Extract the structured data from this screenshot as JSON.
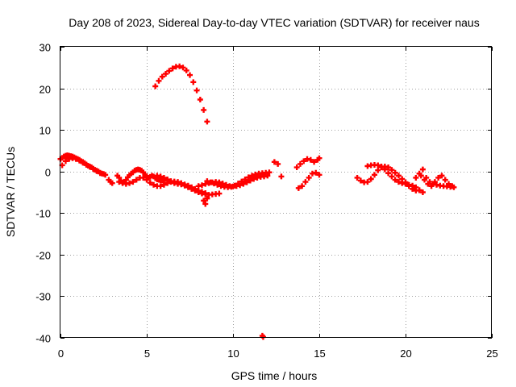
{
  "chart_data": {
    "type": "scatter",
    "title": "Day 208 of 2023, Sidereal Day-to-day VTEC variation (SDTVAR) for receiver naus",
    "xlabel": "GPS time / hours",
    "ylabel": "SDTVAR / TECUs",
    "xlim": [
      0,
      25
    ],
    "ylim": [
      -40,
      30
    ],
    "xticks": [
      0,
      5,
      10,
      15,
      20,
      25
    ],
    "yticks": [
      30,
      20,
      10,
      0,
      -10,
      -20,
      -30,
      -40
    ],
    "grid": true,
    "marker": "plus",
    "color": "#ff0000",
    "series": [
      {
        "name": "SDTVAR",
        "x": [
          0.0,
          0.1,
          0.2,
          0.3,
          0.4,
          0.5,
          0.6,
          0.7,
          0.8,
          0.9,
          1.0,
          1.1,
          1.2,
          1.3,
          1.4,
          1.5,
          1.6,
          1.7,
          1.8,
          1.9,
          2.0,
          2.1,
          2.2,
          2.3,
          2.4,
          2.5,
          2.6,
          0.1,
          0.3,
          0.5,
          0.7,
          0.9,
          1.1,
          1.3,
          1.5,
          1.7,
          1.9,
          2.1,
          2.3,
          2.8,
          2.9,
          3.0,
          3.3,
          3.4,
          3.5,
          3.6,
          3.7,
          3.8,
          3.9,
          4.0,
          4.1,
          4.2,
          4.3,
          4.4,
          4.5,
          4.6,
          4.7,
          4.8,
          4.9,
          5.0,
          5.1,
          5.2,
          5.3,
          5.4,
          5.5,
          5.6,
          5.7,
          5.8,
          5.9,
          6.0,
          3.4,
          3.6,
          3.8,
          4.0,
          4.2,
          4.4,
          4.6,
          4.8,
          5.0,
          5.2,
          5.4,
          5.6,
          5.8,
          6.0,
          6.2,
          6.4,
          6.6,
          6.8,
          7.0,
          7.2,
          7.4,
          7.6,
          7.8,
          8.0,
          8.2,
          8.4,
          5.5,
          5.7,
          5.9,
          6.1,
          6.3,
          6.5,
          6.7,
          6.9,
          7.1,
          7.3,
          7.5,
          7.7,
          7.9,
          8.1,
          8.3,
          8.5,
          8.0,
          8.2,
          8.4,
          8.6,
          8.8,
          9.0,
          9.2,
          9.4,
          9.6,
          9.8,
          10.0,
          10.2,
          10.4,
          10.6,
          10.8,
          11.0,
          11.2,
          11.4,
          11.6,
          11.8,
          12.0,
          8.5,
          8.7,
          8.9,
          9.1,
          9.3,
          9.5,
          9.7,
          9.9,
          10.1,
          10.3,
          10.5,
          10.7,
          10.9,
          11.1,
          11.3,
          11.5,
          11.7,
          11.9,
          12.1,
          8.3,
          8.4,
          8.5,
          5.6,
          5.8,
          6.0,
          6.2,
          6.4,
          6.6,
          6.8,
          7.0,
          7.2,
          7.4,
          7.6,
          7.8,
          8.0,
          8.2,
          8.4,
          8.6,
          8.8,
          9.0,
          9.2,
          11.7,
          11.75,
          12.4,
          12.6,
          12.8,
          13.7,
          13.9,
          14.1,
          14.3,
          14.5,
          14.7,
          14.9,
          15.0,
          13.8,
          14.0,
          14.2,
          14.4,
          14.6,
          14.8,
          15.0,
          17.2,
          17.4,
          17.6,
          17.8,
          18.0,
          18.2,
          18.4,
          18.6,
          18.8,
          19.0,
          19.2,
          19.4,
          19.6,
          19.8,
          20.0,
          20.2,
          20.4,
          20.6,
          20.8,
          17.8,
          18.0,
          18.2,
          18.4,
          18.6,
          18.8,
          19.0,
          19.2,
          19.4,
          19.6,
          19.8,
          20.0,
          20.2,
          20.4,
          20.6,
          20.8,
          21.0,
          20.6,
          20.8,
          21.0,
          21.2,
          21.4,
          21.6,
          21.8,
          22.0,
          22.2,
          22.4,
          22.6,
          22.8,
          20.9,
          21.1,
          21.3,
          21.5,
          21.7,
          21.9,
          22.1,
          22.3,
          22.5,
          22.7
        ],
        "y": [
          3.0,
          3.3,
          3.6,
          3.8,
          3.9,
          3.8,
          3.7,
          3.6,
          3.4,
          3.2,
          3.0,
          2.8,
          2.5,
          2.3,
          2.0,
          1.7,
          1.4,
          1.2,
          1.0,
          0.7,
          0.4,
          0.2,
          0.0,
          -0.3,
          -0.5,
          -0.6,
          -0.8,
          1.5,
          2.5,
          3.0,
          3.2,
          3.0,
          2.6,
          2.1,
          1.6,
          1.1,
          0.6,
          0.1,
          -0.4,
          -2.0,
          -2.5,
          -2.8,
          -1.0,
          -1.5,
          -2.2,
          -2.6,
          -2.5,
          -2.0,
          -1.4,
          -0.9,
          -0.5,
          -0.2,
          0.2,
          0.4,
          0.5,
          0.4,
          0.2,
          -0.2,
          -0.7,
          -1.2,
          -1.5,
          -1.3,
          -1.0,
          -1.2,
          -1.6,
          -1.9,
          -2.0,
          -2.1,
          -2.2,
          -2.3,
          -2.5,
          -2.8,
          -3.0,
          -2.8,
          -2.5,
          -2.0,
          -1.5,
          -1.5,
          -2.0,
          -2.7,
          -3.2,
          -3.5,
          -3.5,
          -3.2,
          -2.8,
          -2.5,
          -2.4,
          -2.5,
          -2.8,
          -3.1,
          -3.4,
          -3.8,
          -4.2,
          -4.6,
          -4.9,
          -5.2,
          20.5,
          21.8,
          22.8,
          23.5,
          24.2,
          24.8,
          25.2,
          25.3,
          25.0,
          24.3,
          23.2,
          21.5,
          19.5,
          17.3,
          14.8,
          12.0,
          -3.5,
          -3.3,
          -3.0,
          -2.8,
          -2.6,
          -2.5,
          -2.6,
          -2.9,
          -3.2,
          -3.5,
          -3.6,
          -3.5,
          -3.3,
          -3.0,
          -2.6,
          -2.2,
          -1.8,
          -1.5,
          -1.3,
          -1.2,
          -1.0,
          -2.3,
          -2.6,
          -2.9,
          -3.2,
          -3.5,
          -3.7,
          -3.8,
          -3.7,
          -3.4,
          -2.9,
          -2.4,
          -1.9,
          -1.4,
          -1.0,
          -0.7,
          -0.5,
          -0.4,
          -0.3,
          -0.2,
          -7.0,
          -7.8,
          -6.5,
          -1.0,
          -1.2,
          -1.5,
          -1.9,
          -2.3,
          -2.8,
          -3.0,
          -3.1,
          -3.4,
          -3.8,
          -4.2,
          -4.6,
          -5.0,
          -5.3,
          -5.5,
          -5.6,
          -5.5,
          -5.4,
          -5.3,
          -39.5,
          -39.8,
          2.3,
          1.8,
          -1.2,
          1.0,
          1.8,
          2.5,
          3.0,
          2.8,
          2.3,
          2.8,
          3.2,
          -4.0,
          -3.5,
          -2.5,
          -1.5,
          -0.5,
          -0.3,
          -0.8,
          -1.5,
          -2.2,
          -2.6,
          -2.5,
          -1.8,
          -0.8,
          0.3,
          1.0,
          1.2,
          1.0,
          0.4,
          -0.3,
          -1.0,
          -1.8,
          -2.6,
          -3.5,
          -4.2,
          -4.6,
          -4.5,
          1.3,
          1.5,
          1.6,
          1.5,
          1.2,
          0.5,
          -0.4,
          -1.2,
          -2.0,
          -2.5,
          -2.8,
          -3.0,
          -3.2,
          -3.4,
          -3.8,
          -4.5,
          -5.0,
          -1.5,
          -0.5,
          0.5,
          -1.5,
          -2.5,
          -3.0,
          -3.2,
          -3.4,
          -3.5,
          -3.6,
          -3.7,
          -3.8,
          -1.0,
          -2.0,
          -3.0,
          -3.5,
          -2.5,
          -1.5,
          -1.0,
          -2.0,
          -3.0,
          -3.5
        ]
      }
    ]
  }
}
